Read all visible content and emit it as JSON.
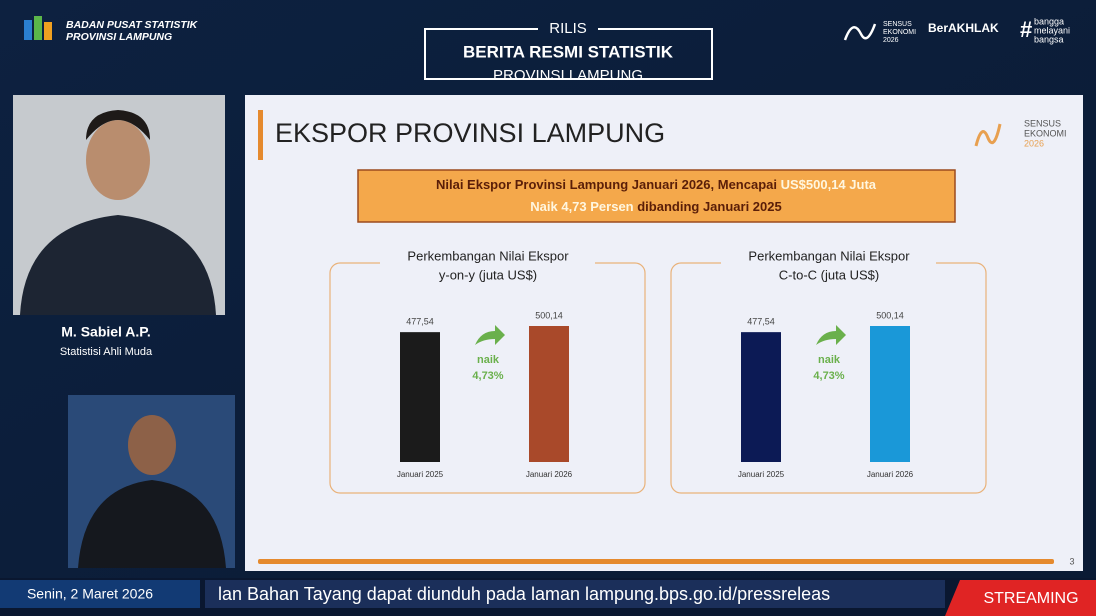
{
  "header": {
    "org_line1": "BADAN PUSAT STATISTIK",
    "org_line2": "PROVINSI LAMPUNG",
    "rilis": "RILIS",
    "title": "BERITA RESMI STATISTIK",
    "subtitle": "PROVINSI LAMPUNG",
    "logos": [
      "SENSUS",
      "EKONOMI",
      "2026",
      "BerAKHLAK",
      "bangga",
      "melayani",
      "bangsa"
    ]
  },
  "presenter": {
    "name": "M. Sabiel A.P.",
    "role": "Statistisi Ahli Muda"
  },
  "slide": {
    "title": "EKSPOR PROVINSI LAMPUNG",
    "logo": [
      "SENSUS",
      "EKONOMI",
      "2026"
    ],
    "banner_line1": [
      "Nilai Ekspor Provinsi Lampung Januari 2026, Mencapai ",
      "US$500,14 Juta"
    ],
    "banner_line2": [
      "Naik 4,73 Persen",
      " dibanding Januari 2025"
    ],
    "page_number": "3"
  },
  "chart_data": [
    {
      "type": "bar",
      "title": "Perkembangan Nilai Ekspor",
      "subtitle": "y-on-y (juta US$)",
      "categories": [
        "Januari 2025",
        "Januari 2026"
      ],
      "values": [
        477.54,
        500.14
      ],
      "value_labels": [
        "477,54",
        "500,14"
      ],
      "colors": [
        "#1b1b1b",
        "#a9492a"
      ],
      "annotations": [
        "naik",
        "4,73%"
      ]
    },
    {
      "type": "bar",
      "title": "Perkembangan Nilai Ekspor",
      "subtitle": "C-to-C (juta US$)",
      "categories": [
        "Januari 2025",
        "Januari 2026"
      ],
      "values": [
        477.54,
        500.14
      ],
      "value_labels": [
        "477,54",
        "500,14"
      ],
      "colors": [
        "#0c1a55",
        "#1a98d8"
      ],
      "annotations": [
        "naik",
        "4,73%"
      ]
    }
  ],
  "footer": {
    "date": "Senin, 2 Maret 2026",
    "ticker": "lan Bahan Tayang dapat diunduh pada laman lampung.bps.go.id/pressreleas",
    "badge": "STREAMING"
  }
}
